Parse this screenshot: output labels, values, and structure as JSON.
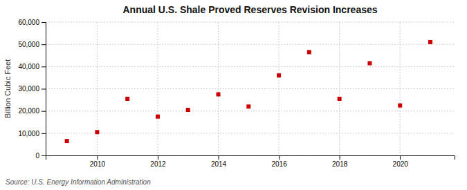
{
  "chart_data": {
    "type": "scatter",
    "title": "Annual U.S. Shale Proved Reserves Revision Increases",
    "ylabel": "Billion Cubic Feet",
    "annotations": [
      "Source: U.S. Energy Information Administration"
    ],
    "x": [
      2009,
      2010,
      2011,
      2012,
      2013,
      2014,
      2015,
      2016,
      2017,
      2018,
      2019,
      2020,
      2021
    ],
    "values": [
      6500,
      10500,
      25500,
      17500,
      20500,
      27500,
      22000,
      36000,
      46500,
      25500,
      41500,
      22500,
      51000
    ],
    "color": "#cc0000",
    "marker": "square",
    "xlim": [
      2008.3,
      2021.8
    ],
    "xticks": [
      2010,
      2012,
      2014,
      2016,
      2018,
      2020
    ],
    "ylim": [
      0,
      60000
    ],
    "yticks": [
      0,
      {
        "value": 10000,
        "label": "10,000"
      },
      {
        "value": 20000,
        "label": "20,000"
      },
      {
        "value": 30000,
        "label": "30,000"
      },
      {
        "value": 40000,
        "label": "40,000"
      },
      {
        "value": 50000,
        "label": "50,000"
      },
      {
        "value": 60000,
        "label": "60,000"
      }
    ],
    "grid": true
  }
}
